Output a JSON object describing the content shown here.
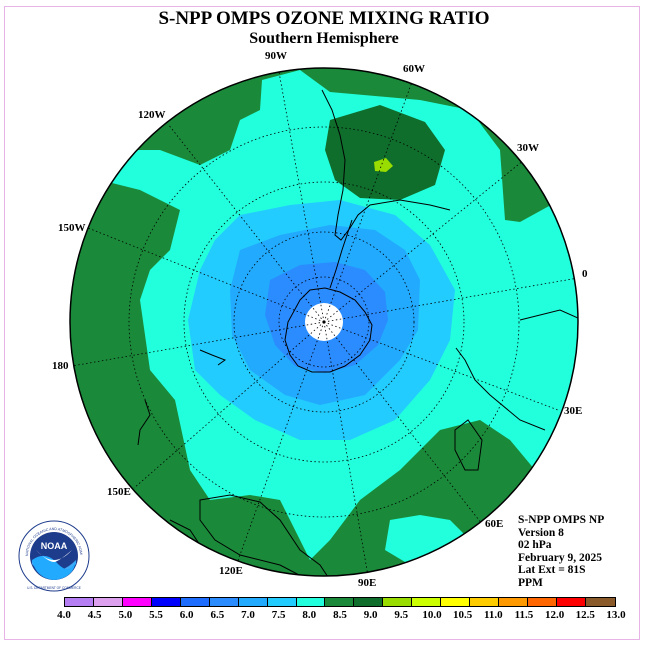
{
  "title": "S-NPP OMPS OZONE MIXING RATIO",
  "subtitle": "Southern Hemisphere",
  "longitude_labels": [
    "90W",
    "60W",
    "120W",
    "30W",
    "150W",
    "0",
    "180",
    "30E",
    "150E",
    "60E",
    "120E",
    "90E"
  ],
  "info": {
    "line1": "S-NPP OMPS NP",
    "line2": "Version 8",
    "line3": "02 hPa",
    "line4": "February 9, 2025",
    "line5": "Lat Ext = 81S",
    "line6": "PPM"
  },
  "logo": {
    "name": "NOAA",
    "ring_text": "NATIONAL OCEANIC AND ATMOSPHERIC ADMINISTRATION",
    "bottom_text": "U.S. DEPARTMENT OF COMMERCE"
  },
  "colorbar": {
    "ticks": [
      "4.0",
      "4.5",
      "5.0",
      "5.5",
      "6.0",
      "6.5",
      "7.0",
      "7.5",
      "8.0",
      "8.5",
      "9.0",
      "9.5",
      "10.0",
      "10.5",
      "11.0",
      "11.5",
      "12.0",
      "12.5",
      "13.0"
    ],
    "colors": [
      "#b57ef2",
      "#dda0ee",
      "#ff00ff",
      "#0000ff",
      "#1e6dff",
      "#2b8cff",
      "#22aaff",
      "#22ccff",
      "#22ffdd",
      "#1a8a3a",
      "#0f6e2c",
      "#99dd00",
      "#ccff00",
      "#ffff00",
      "#ffcc00",
      "#ff9900",
      "#ff6600",
      "#ff0000",
      "#8b5a2b"
    ]
  },
  "colors": {
    "green_8_5": "#1a8a3a",
    "darkgreen_9_0": "#0f6e2c",
    "aqua_8_0": "#22ffdd",
    "sky_7_5": "#22ccff",
    "lightblue_7_0": "#22aaff",
    "blue_6_5": "#2b8cff",
    "yellowgreen_9_5": "#99dd00"
  }
}
